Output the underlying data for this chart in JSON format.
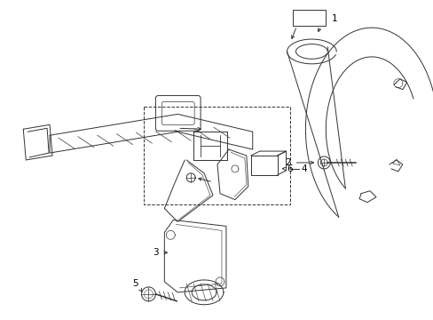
{
  "background_color": "#ffffff",
  "line_color": "#333333",
  "label_color": "#000000",
  "fig_width": 4.89,
  "fig_height": 3.6,
  "dpi": 100,
  "font_size": 7.5
}
